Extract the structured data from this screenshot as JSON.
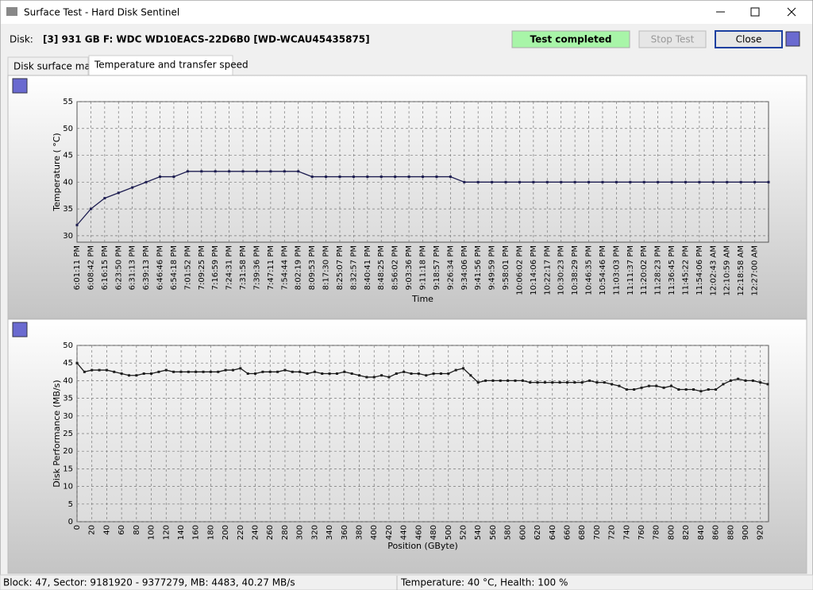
{
  "window": {
    "title": "Surface Test - Hard Disk Sentinel"
  },
  "toolbar": {
    "disk_label": "Disk:",
    "disk_name": "[3] 931 GB F: WDC WD10EACS-22D6B0 [WD-WCAU45435875]",
    "status": "Test completed",
    "stop_button": "Stop Test",
    "close_button": "Close"
  },
  "tabs": [
    "Disk surface map",
    "Temperature and transfer speed"
  ],
  "chart_data": [
    {
      "type": "line",
      "x_label": "Time",
      "y_label": "Temperature ( °C)",
      "grid": true,
      "color": "#1c1c50",
      "categories": [
        "6:01:11 PM",
        "6:08:42 PM",
        "6:16:15 PM",
        "6:23:50 PM",
        "6:31:13 PM",
        "6:39:13 PM",
        "6:46:46 PM",
        "6:54:18 PM",
        "7:01:52 PM",
        "7:09:25 PM",
        "7:16:59 PM",
        "7:24:31 PM",
        "7:31:58 PM",
        "7:39:36 PM",
        "7:47:11 PM",
        "7:54:44 PM",
        "8:02:19 PM",
        "8:09:53 PM",
        "8:17:30 PM",
        "8:25:07 PM",
        "8:32:57 PM",
        "8:40:41 PM",
        "8:48:25 PM",
        "8:56:02 PM",
        "9:03:36 PM",
        "9:11:18 PM",
        "9:18:57 PM",
        "9:26:34 PM",
        "9:34:06 PM",
        "9:41:56 PM",
        "9:49:59 PM",
        "9:58:01 PM",
        "10:06:02 PM",
        "10:14:06 PM",
        "10:22:17 PM",
        "10:30:23 PM",
        "10:38:29 PM",
        "10:46:35 PM",
        "10:54:46 PM",
        "11:03:03 PM",
        "11:11:37 PM",
        "11:20:02 PM",
        "11:28:23 PM",
        "11:36:45 PM",
        "11:45:22 PM",
        "11:54:06 PM",
        "12:02:43 AM",
        "12:10:59 AM",
        "12:18:58 AM",
        "12:27:00 AM",
        null
      ],
      "values": [
        32,
        35,
        37,
        38,
        39,
        40,
        41,
        41,
        42,
        42,
        42,
        42,
        42,
        42,
        42,
        42,
        42,
        41,
        41,
        41,
        41,
        41,
        41,
        41,
        41,
        41,
        41,
        41,
        40,
        40,
        40,
        40,
        40,
        40,
        40,
        40,
        40,
        40,
        40,
        40,
        40,
        40,
        40,
        40,
        40,
        40,
        40,
        40,
        40,
        40,
        40
      ],
      "ylim": [
        28.8,
        55
      ],
      "yticks": [
        30,
        35,
        40,
        45,
        50,
        55
      ]
    },
    {
      "type": "line",
      "x_label": "Position (GByte)",
      "y_label": "Disk Performance (MB/s)",
      "grid": true,
      "color": "#1c1c1c",
      "x": [
        0,
        10,
        20,
        30,
        40,
        50,
        60,
        70,
        80,
        90,
        100,
        110,
        120,
        130,
        140,
        150,
        160,
        170,
        180,
        190,
        200,
        210,
        220,
        230,
        240,
        250,
        260,
        270,
        280,
        290,
        300,
        310,
        320,
        330,
        340,
        350,
        360,
        370,
        380,
        390,
        400,
        410,
        420,
        430,
        440,
        450,
        460,
        470,
        480,
        490,
        500,
        510,
        520,
        530,
        540,
        550,
        560,
        570,
        580,
        590,
        600,
        610,
        620,
        630,
        640,
        650,
        660,
        670,
        680,
        690,
        700,
        710,
        720,
        730,
        740,
        750,
        760,
        770,
        780,
        790,
        800,
        810,
        820,
        830,
        840,
        850,
        860,
        870,
        880,
        890,
        900,
        910,
        920,
        930
      ],
      "values": [
        45,
        42.5,
        43,
        43,
        43,
        42.5,
        42,
        41.5,
        41.5,
        42,
        42,
        42.5,
        43,
        42.5,
        42.5,
        42.5,
        42.5,
        42.5,
        42.5,
        42.5,
        43,
        43,
        43.5,
        42,
        42,
        42.5,
        42.5,
        42.5,
        43,
        42.5,
        42.5,
        42,
        42.5,
        42,
        42,
        42,
        42.5,
        42,
        41.5,
        41,
        41,
        41.5,
        41,
        42,
        42.5,
        42,
        42,
        41.5,
        42,
        42,
        42,
        43,
        43.5,
        41.5,
        39.5,
        40,
        40,
        40,
        40,
        40,
        40,
        39.5,
        39.5,
        39.5,
        39.5,
        39.5,
        39.5,
        39.5,
        39.5,
        40,
        39.5,
        39.5,
        39,
        38.5,
        37.5,
        37.5,
        38,
        38.5,
        38.5,
        38,
        38.5,
        37.5,
        37.5,
        37.5,
        37,
        37.5,
        37.5,
        39,
        40,
        40.5,
        40,
        40,
        39.5,
        39
      ],
      "xlim": [
        0,
        931
      ],
      "xticks": [
        0,
        20,
        40,
        60,
        80,
        100,
        120,
        140,
        160,
        180,
        200,
        220,
        240,
        260,
        280,
        300,
        320,
        340,
        360,
        380,
        400,
        420,
        440,
        460,
        480,
        500,
        520,
        540,
        560,
        580,
        600,
        620,
        640,
        660,
        680,
        700,
        720,
        740,
        760,
        780,
        800,
        820,
        840,
        860,
        880,
        900,
        920
      ],
      "ylim": [
        0,
        50
      ],
      "yticks": [
        0,
        5,
        10,
        15,
        20,
        25,
        30,
        35,
        40,
        45,
        50
      ]
    }
  ],
  "status_bar": [
    "Block: 47, Sector: 9181920 - 9377279, MB: 4483, 40.27 MB/s",
    "Temperature: 40  °C,  Health: 100 %"
  ]
}
